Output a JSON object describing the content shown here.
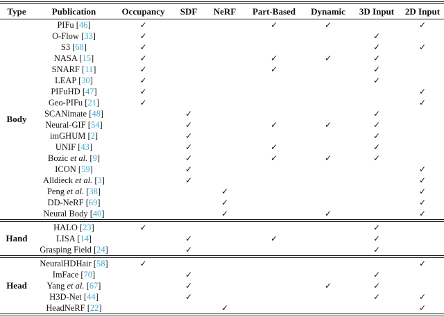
{
  "table": {
    "headers": [
      "Type",
      "Publication",
      "Occupancy",
      "SDF",
      "NeRF",
      "Part-Based",
      "Dynamic",
      "3D Input",
      "2D Input"
    ],
    "check_columns": [
      "Occupancy",
      "SDF",
      "NeRF",
      "Part-Based",
      "Dynamic",
      "3D Input",
      "2D Input"
    ],
    "check_symbol": "✓",
    "colors": {
      "citation": "#3aabd2",
      "text": "#111111",
      "rule": "#161616"
    },
    "groups": [
      {
        "type": "Body",
        "rows": [
          {
            "name": "PIFu",
            "etal": false,
            "cite": "46",
            "checks": [
              1,
              0,
              0,
              1,
              1,
              0,
              1
            ]
          },
          {
            "name": "O-Flow",
            "etal": false,
            "cite": "33",
            "checks": [
              1,
              0,
              0,
              0,
              0,
              1,
              0
            ]
          },
          {
            "name": "S3",
            "etal": false,
            "cite": "68",
            "checks": [
              1,
              0,
              0,
              0,
              0,
              1,
              1
            ]
          },
          {
            "name": "NASA",
            "etal": false,
            "cite": "15",
            "checks": [
              1,
              0,
              0,
              1,
              1,
              1,
              0
            ]
          },
          {
            "name": "SNARF",
            "etal": false,
            "cite": "11",
            "checks": [
              1,
              0,
              0,
              1,
              0,
              1,
              0
            ]
          },
          {
            "name": "LEAP",
            "etal": false,
            "cite": "30",
            "checks": [
              1,
              0,
              0,
              0,
              0,
              1,
              0
            ]
          },
          {
            "name": "PIFuHD",
            "etal": false,
            "cite": "47",
            "checks": [
              1,
              0,
              0,
              0,
              0,
              0,
              1
            ]
          },
          {
            "name": "Geo-PIFu",
            "etal": false,
            "cite": "21",
            "checks": [
              1,
              0,
              0,
              0,
              0,
              0,
              1
            ]
          },
          {
            "name": "SCANimate",
            "etal": false,
            "cite": "48",
            "checks": [
              0,
              1,
              0,
              0,
              0,
              1,
              0
            ]
          },
          {
            "name": "Neural-GIF",
            "etal": false,
            "cite": "54",
            "checks": [
              0,
              1,
              0,
              1,
              1,
              1,
              0
            ]
          },
          {
            "name": "imGHUM",
            "etal": false,
            "cite": "2",
            "checks": [
              0,
              1,
              0,
              0,
              0,
              1,
              0
            ]
          },
          {
            "name": "UNIF",
            "etal": false,
            "cite": "43",
            "checks": [
              0,
              1,
              0,
              1,
              0,
              1,
              0
            ]
          },
          {
            "name": "Bozic",
            "etal": true,
            "cite": "9",
            "checks": [
              0,
              1,
              0,
              1,
              1,
              1,
              0
            ]
          },
          {
            "name": "ICON",
            "etal": false,
            "cite": "59",
            "checks": [
              0,
              1,
              0,
              0,
              0,
              0,
              1
            ]
          },
          {
            "name": "Alldieck",
            "etal": true,
            "cite": "3",
            "checks": [
              0,
              1,
              0,
              0,
              0,
              0,
              1
            ]
          },
          {
            "name": "Peng",
            "etal": true,
            "cite": "38",
            "checks": [
              0,
              0,
              1,
              0,
              0,
              0,
              1
            ]
          },
          {
            "name": "DD-NeRF",
            "etal": false,
            "cite": "69",
            "checks": [
              0,
              0,
              1,
              0,
              0,
              0,
              1
            ]
          },
          {
            "name": "Neural Body",
            "etal": false,
            "cite": "40",
            "checks": [
              0,
              0,
              1,
              0,
              1,
              0,
              1
            ]
          }
        ]
      },
      {
        "type": "Hand",
        "rows": [
          {
            "name": "HALO",
            "etal": false,
            "cite": "23",
            "checks": [
              1,
              0,
              0,
              0,
              0,
              1,
              0
            ]
          },
          {
            "name": "LISA",
            "etal": false,
            "cite": "14",
            "checks": [
              0,
              1,
              0,
              1,
              0,
              1,
              0
            ]
          },
          {
            "name": "Grasping Field",
            "etal": false,
            "cite": "24",
            "checks": [
              0,
              1,
              0,
              0,
              0,
              1,
              0
            ]
          }
        ]
      },
      {
        "type": "Head",
        "rows": [
          {
            "name": "NeuralHDHair",
            "etal": false,
            "cite": "58",
            "checks": [
              1,
              0,
              0,
              0,
              0,
              0,
              1
            ]
          },
          {
            "name": "ImFace",
            "etal": false,
            "cite": "70",
            "checks": [
              0,
              1,
              0,
              0,
              0,
              1,
              0
            ]
          },
          {
            "name": "Yang",
            "etal": true,
            "cite": "67",
            "checks": [
              0,
              1,
              0,
              0,
              1,
              1,
              0
            ]
          },
          {
            "name": "H3D-Net",
            "etal": false,
            "cite": "44",
            "checks": [
              0,
              1,
              0,
              0,
              0,
              1,
              1
            ]
          },
          {
            "name": "HeadNeRF",
            "etal": false,
            "cite": "22",
            "checks": [
              0,
              0,
              1,
              0,
              0,
              0,
              1
            ]
          }
        ]
      }
    ]
  }
}
